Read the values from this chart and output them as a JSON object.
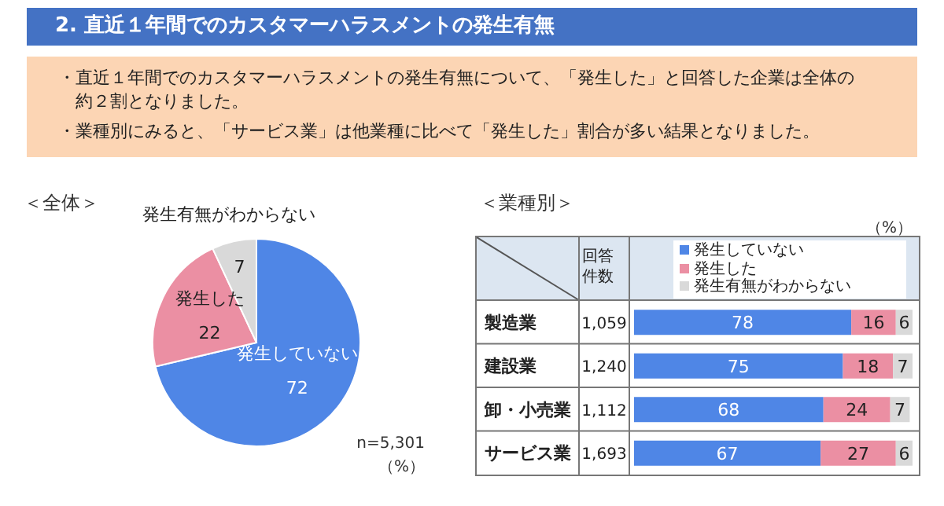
{
  "chart_data": [
    {
      "type": "other",
      "title": "2. 直近１年間でのカスタマーハラスメントの発生有無",
      "annotations": [
        "・直近１年間でのカスタマーハラスメントの発生有無について、「発生した」と回答した企業は全体の約２割となりました。",
        "・業種別にみると、「サービス業」は他業種に比べて「発生した」割合が多い結果となりました。"
      ]
    },
    {
      "type": "pie",
      "title": "＜全体＞",
      "categories": [
        "発生していない",
        "発生した",
        "発生有無がわからない"
      ],
      "values": [
        72,
        22,
        7
      ],
      "colors": [
        "#4f86e6",
        "#eb8fa3",
        "#d9d9d9"
      ],
      "data_labels": true,
      "annotations": [
        "n=5,301",
        "（%）"
      ]
    },
    {
      "type": "bar",
      "orientation": "horizontal",
      "stacked": true,
      "title": "＜業種別＞",
      "categories": [
        "製造業",
        "建設業",
        "卸・小売業",
        "サービス業"
      ],
      "series": [
        {
          "name": "発生していない",
          "color": "#4f86e6",
          "values": [
            78,
            75,
            68,
            67
          ]
        },
        {
          "name": "発生した",
          "color": "#eb8fa3",
          "values": [
            16,
            18,
            24,
            27
          ]
        },
        {
          "name": "発生有無がわからない",
          "color": "#d9d9d9",
          "values": [
            6,
            7,
            7,
            6
          ]
        }
      ],
      "data_labels": true,
      "legend": "top",
      "annotations": [
        "（%）",
        "回答件数",
        "1,059",
        "1,240",
        "1,112",
        "1,693"
      ]
    }
  ]
}
